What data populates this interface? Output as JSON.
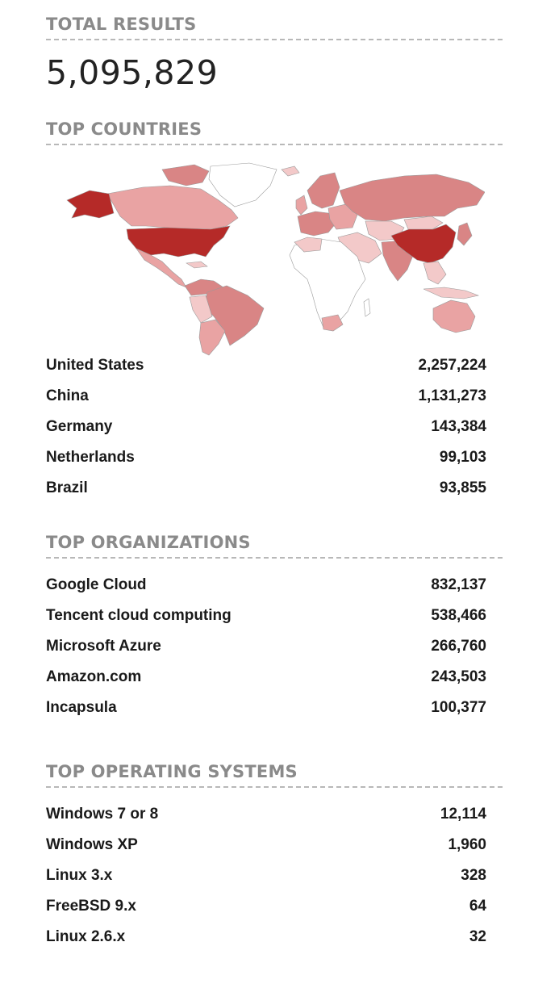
{
  "total": {
    "heading": "TOTAL RESULTS",
    "value": "5,095,829"
  },
  "countries": {
    "heading": "TOP COUNTRIES",
    "map_colors": {
      "none": "#ffffff",
      "low": "#f3c9c9",
      "mid": "#e9a3a3",
      "high": "#d98585",
      "top": "#b52a28"
    },
    "items": [
      {
        "label": "United States",
        "value": "2,257,224"
      },
      {
        "label": "China",
        "value": "1,131,273"
      },
      {
        "label": "Germany",
        "value": "143,384"
      },
      {
        "label": "Netherlands",
        "value": "99,103"
      },
      {
        "label": "Brazil",
        "value": "93,855"
      }
    ]
  },
  "organizations": {
    "heading": "TOP ORGANIZATIONS",
    "items": [
      {
        "label": "Google Cloud",
        "value": "832,137"
      },
      {
        "label": "Tencent cloud computing",
        "value": "538,466"
      },
      {
        "label": "Microsoft Azure",
        "value": "266,760"
      },
      {
        "label": "Amazon.com",
        "value": "243,503"
      },
      {
        "label": "Incapsula",
        "value": "100,377"
      }
    ]
  },
  "operating_systems": {
    "heading": "TOP OPERATING SYSTEMS",
    "items": [
      {
        "label": "Windows 7 or 8",
        "value": "12,114"
      },
      {
        "label": "Windows XP",
        "value": "1,960"
      },
      {
        "label": "Linux 3.x",
        "value": "328"
      },
      {
        "label": "FreeBSD 9.x",
        "value": "64"
      },
      {
        "label": "Linux 2.6.x",
        "value": "32"
      }
    ]
  }
}
